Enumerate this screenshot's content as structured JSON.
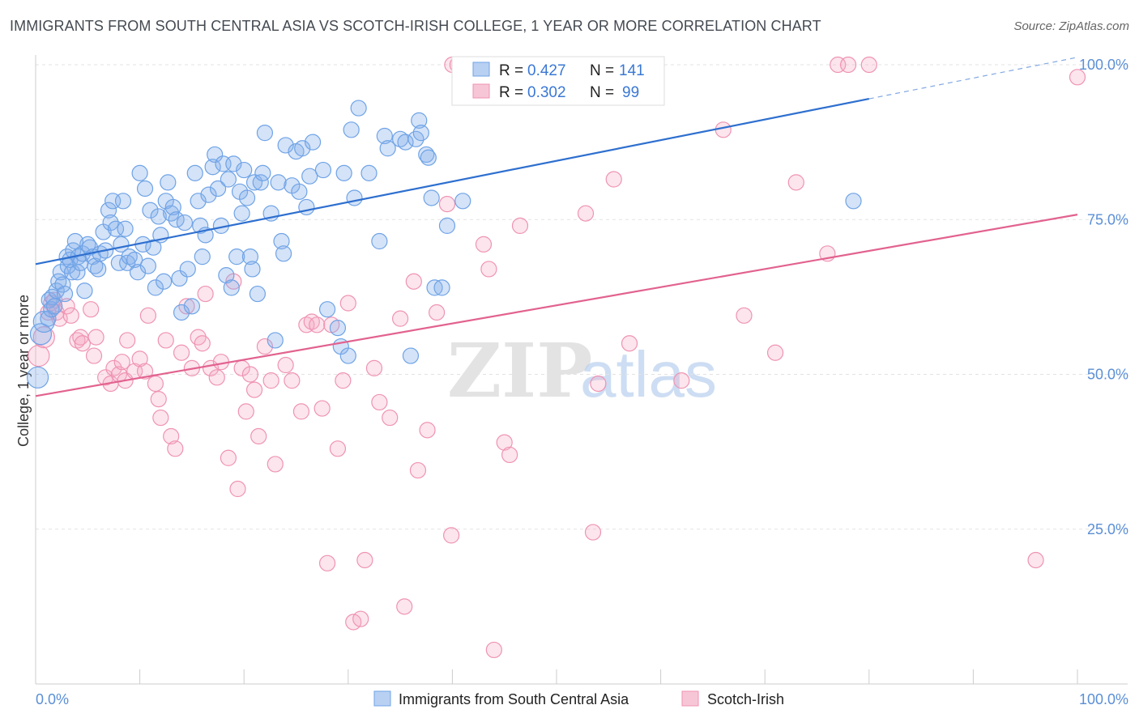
{
  "header": {
    "title": "IMMIGRANTS FROM SOUTH CENTRAL ASIA VS SCOTCH-IRISH COLLEGE, 1 YEAR OR MORE CORRELATION CHART",
    "source": "Source: ZipAtlas.com"
  },
  "watermark": {
    "zip": "ZIP",
    "atlas": "atlas"
  },
  "colors": {
    "blue": "#6fa3e6",
    "blue_fill": "rgba(132,176,236,0.35)",
    "blue_line": "#2e6fcf",
    "pink": "#ef93b3",
    "pink_fill": "rgba(244,170,196,0.30)",
    "pink_line": "#e2628f",
    "tick": "#5b8fd6"
  },
  "legend": {
    "rows": [
      {
        "r_label": "R =",
        "r_value": "0.427",
        "n_label": "N =",
        "n_value": "141"
      },
      {
        "r_label": "R =",
        "r_value": "0.302",
        "n_label": "N =",
        "n_value": "99"
      }
    ]
  },
  "chart_data": {
    "type": "scatter",
    "xlabel": "",
    "ylabel": "College, 1 year or more",
    "xlim": [
      0,
      100
    ],
    "ylim": [
      0,
      100
    ],
    "x_tick_labels": [
      "0.0%",
      "100.0%"
    ],
    "y_tick_labels": [
      "25.0%",
      "50.0%",
      "75.0%",
      "100.0%"
    ],
    "y_ticks": [
      25,
      50,
      75,
      100
    ],
    "grid": true,
    "series": [
      {
        "name": "Immigrants from South Central Asia",
        "color": "#6fa3e6",
        "trend": {
          "x0": 0,
          "y0": 67.8,
          "x1": 80,
          "y1": 94.5,
          "dash_to_x": 100,
          "dash_to_y": 101.2
        },
        "points": [
          [
            0.2,
            49.5
          ],
          [
            0.5,
            56.5
          ],
          [
            0.8,
            58.5
          ],
          [
            1.2,
            59
          ],
          [
            1.3,
            62
          ],
          [
            1.5,
            60.5
          ],
          [
            1.6,
            62.5
          ],
          [
            1.8,
            61
          ],
          [
            2,
            63.5
          ],
          [
            2.2,
            65
          ],
          [
            2.4,
            66.5
          ],
          [
            2.6,
            64.5
          ],
          [
            2.8,
            63
          ],
          [
            3,
            69
          ],
          [
            3.1,
            67.5
          ],
          [
            3.3,
            68.5
          ],
          [
            3.5,
            66.5
          ],
          [
            3.6,
            70
          ],
          [
            3.8,
            71.5
          ],
          [
            4,
            66.5
          ],
          [
            4.1,
            69
          ],
          [
            4.3,
            68
          ],
          [
            4.5,
            69.5
          ],
          [
            4.7,
            63.5
          ],
          [
            5,
            71
          ],
          [
            5.2,
            70.5
          ],
          [
            5.5,
            69
          ],
          [
            5.7,
            67.5
          ],
          [
            6,
            67
          ],
          [
            6.2,
            69.5
          ],
          [
            6.5,
            73
          ],
          [
            6.7,
            70
          ],
          [
            7,
            76.5
          ],
          [
            7.2,
            74.5
          ],
          [
            7.4,
            78
          ],
          [
            7.7,
            73.5
          ],
          [
            8,
            68
          ],
          [
            8.2,
            71
          ],
          [
            8.4,
            78
          ],
          [
            8.6,
            73.5
          ],
          [
            8.8,
            68
          ],
          [
            9,
            69
          ],
          [
            9.5,
            68.5
          ],
          [
            9.8,
            66.5
          ],
          [
            10,
            82.5
          ],
          [
            10.3,
            71
          ],
          [
            10.5,
            80
          ],
          [
            10.8,
            67.5
          ],
          [
            11,
            76.5
          ],
          [
            11.3,
            70.5
          ],
          [
            11.5,
            64
          ],
          [
            11.8,
            75.5
          ],
          [
            12,
            72.5
          ],
          [
            12.3,
            65
          ],
          [
            12.5,
            78
          ],
          [
            12.7,
            81
          ],
          [
            13,
            76
          ],
          [
            13.2,
            77
          ],
          [
            13.5,
            75
          ],
          [
            13.8,
            65.5
          ],
          [
            14,
            60
          ],
          [
            14.3,
            74.5
          ],
          [
            14.6,
            67
          ],
          [
            15,
            61
          ],
          [
            15.3,
            82.5
          ],
          [
            15.6,
            78
          ],
          [
            15.8,
            74
          ],
          [
            16,
            69
          ],
          [
            16.3,
            72.5
          ],
          [
            16.6,
            79
          ],
          [
            17,
            83.5
          ],
          [
            17.2,
            85.5
          ],
          [
            17.5,
            80
          ],
          [
            17.8,
            74
          ],
          [
            18,
            84
          ],
          [
            18.3,
            66
          ],
          [
            18.5,
            81.5
          ],
          [
            18.8,
            64
          ],
          [
            19,
            84
          ],
          [
            19.3,
            69
          ],
          [
            19.6,
            79.5
          ],
          [
            19.8,
            76
          ],
          [
            20,
            83
          ],
          [
            20.3,
            78.5
          ],
          [
            20.6,
            69
          ],
          [
            20.8,
            67
          ],
          [
            21,
            81
          ],
          [
            21.3,
            63
          ],
          [
            21.6,
            81
          ],
          [
            21.8,
            82.5
          ],
          [
            22,
            89
          ],
          [
            22.6,
            76
          ],
          [
            23,
            55.5
          ],
          [
            23.3,
            81
          ],
          [
            23.6,
            71.5
          ],
          [
            23.8,
            69.5
          ],
          [
            24,
            87
          ],
          [
            24.6,
            80.5
          ],
          [
            25,
            86
          ],
          [
            25.3,
            79.5
          ],
          [
            25.6,
            86.5
          ],
          [
            26,
            77
          ],
          [
            26.3,
            82
          ],
          [
            26.6,
            87.5
          ],
          [
            27.6,
            83
          ],
          [
            28,
            60.5
          ],
          [
            29,
            57.5
          ],
          [
            29.3,
            54.5
          ],
          [
            29.6,
            82.5
          ],
          [
            30,
            53
          ],
          [
            30.3,
            89.5
          ],
          [
            30.6,
            78.5
          ],
          [
            31,
            93
          ],
          [
            32,
            82.5
          ],
          [
            33,
            71.5
          ],
          [
            33.5,
            88.5
          ],
          [
            33.8,
            86.5
          ],
          [
            35,
            88
          ],
          [
            35.5,
            87.5
          ],
          [
            36,
            53
          ],
          [
            36.5,
            88
          ],
          [
            36.8,
            91
          ],
          [
            37,
            89
          ],
          [
            37.5,
            85.5
          ],
          [
            37.7,
            85
          ],
          [
            38,
            78.5
          ],
          [
            38.3,
            64
          ],
          [
            39,
            64
          ],
          [
            39.5,
            74
          ],
          [
            41,
            78
          ],
          [
            78.5,
            78
          ]
        ]
      },
      {
        "name": "Scotch-Irish",
        "color": "#ef93b3",
        "trend": {
          "x0": 0,
          "y0": 46.5,
          "x1": 100,
          "y1": 75.8
        },
        "points": [
          [
            0.3,
            53
          ],
          [
            0.8,
            56
          ],
          [
            1.2,
            60
          ],
          [
            1.5,
            61.5
          ],
          [
            1.8,
            62
          ],
          [
            2,
            60
          ],
          [
            2.3,
            59
          ],
          [
            3,
            61
          ],
          [
            3.4,
            59.5
          ],
          [
            4,
            55.5
          ],
          [
            4.3,
            56
          ],
          [
            4.5,
            55
          ],
          [
            5.3,
            60.5
          ],
          [
            5.6,
            53
          ],
          [
            5.8,
            56
          ],
          [
            6.7,
            49.5
          ],
          [
            7.2,
            48.5
          ],
          [
            7.5,
            51
          ],
          [
            8,
            50
          ],
          [
            8.3,
            52
          ],
          [
            8.6,
            49
          ],
          [
            8.8,
            55.5
          ],
          [
            9.5,
            50.5
          ],
          [
            10,
            52.5
          ],
          [
            10.5,
            50.5
          ],
          [
            10.8,
            59.5
          ],
          [
            11.5,
            48.5
          ],
          [
            11.8,
            46
          ],
          [
            12,
            43
          ],
          [
            12.5,
            55.5
          ],
          [
            13,
            40
          ],
          [
            13.4,
            38
          ],
          [
            14,
            53.5
          ],
          [
            14.5,
            61
          ],
          [
            15,
            51
          ],
          [
            15.6,
            56
          ],
          [
            16,
            55
          ],
          [
            16.3,
            63
          ],
          [
            16.8,
            51
          ],
          [
            17.4,
            49.5
          ],
          [
            17.8,
            52
          ],
          [
            18.5,
            36.5
          ],
          [
            19,
            65
          ],
          [
            19.4,
            31.5
          ],
          [
            19.8,
            51
          ],
          [
            20.2,
            44
          ],
          [
            20.6,
            50
          ],
          [
            21,
            47.5
          ],
          [
            21.4,
            40
          ],
          [
            22,
            54.5
          ],
          [
            22.6,
            49
          ],
          [
            23,
            35.5
          ],
          [
            24,
            51.5
          ],
          [
            24.6,
            49
          ],
          [
            25.5,
            44
          ],
          [
            26,
            58
          ],
          [
            26.5,
            58.5
          ],
          [
            27,
            58
          ],
          [
            27.5,
            44.5
          ],
          [
            28,
            19.5
          ],
          [
            28.4,
            58
          ],
          [
            29,
            38
          ],
          [
            29.5,
            49
          ],
          [
            30,
            61.5
          ],
          [
            30.5,
            10
          ],
          [
            31.2,
            10.5
          ],
          [
            31.6,
            20
          ],
          [
            32.5,
            51
          ],
          [
            33,
            45.5
          ],
          [
            34,
            43
          ],
          [
            35,
            59
          ],
          [
            35.4,
            12.5
          ],
          [
            36.3,
            65
          ],
          [
            36.7,
            34.5
          ],
          [
            37.6,
            41
          ],
          [
            38.5,
            60
          ],
          [
            39.5,
            77.5
          ],
          [
            39.9,
            24
          ],
          [
            40,
            100
          ],
          [
            40.5,
            100
          ],
          [
            41,
            100
          ],
          [
            41.5,
            100
          ],
          [
            43,
            71
          ],
          [
            43.5,
            67
          ],
          [
            44,
            5.5
          ],
          [
            45,
            39
          ],
          [
            45.5,
            37
          ],
          [
            46.5,
            74
          ],
          [
            50,
            100
          ],
          [
            52,
            100
          ],
          [
            52.8,
            76
          ],
          [
            53.5,
            24.5
          ],
          [
            54,
            48.5
          ],
          [
            55.5,
            81.5
          ],
          [
            57,
            55
          ],
          [
            62,
            49
          ],
          [
            66,
            89.5
          ],
          [
            68,
            59.5
          ],
          [
            71,
            53.5
          ],
          [
            73,
            81
          ],
          [
            76,
            69.5
          ],
          [
            77,
            100
          ],
          [
            78,
            100
          ],
          [
            80,
            100
          ],
          [
            96,
            20
          ],
          [
            100,
            98
          ]
        ]
      }
    ]
  },
  "bottom_legend": {
    "items": [
      "Immigrants from South Central Asia",
      "Scotch-Irish"
    ]
  }
}
